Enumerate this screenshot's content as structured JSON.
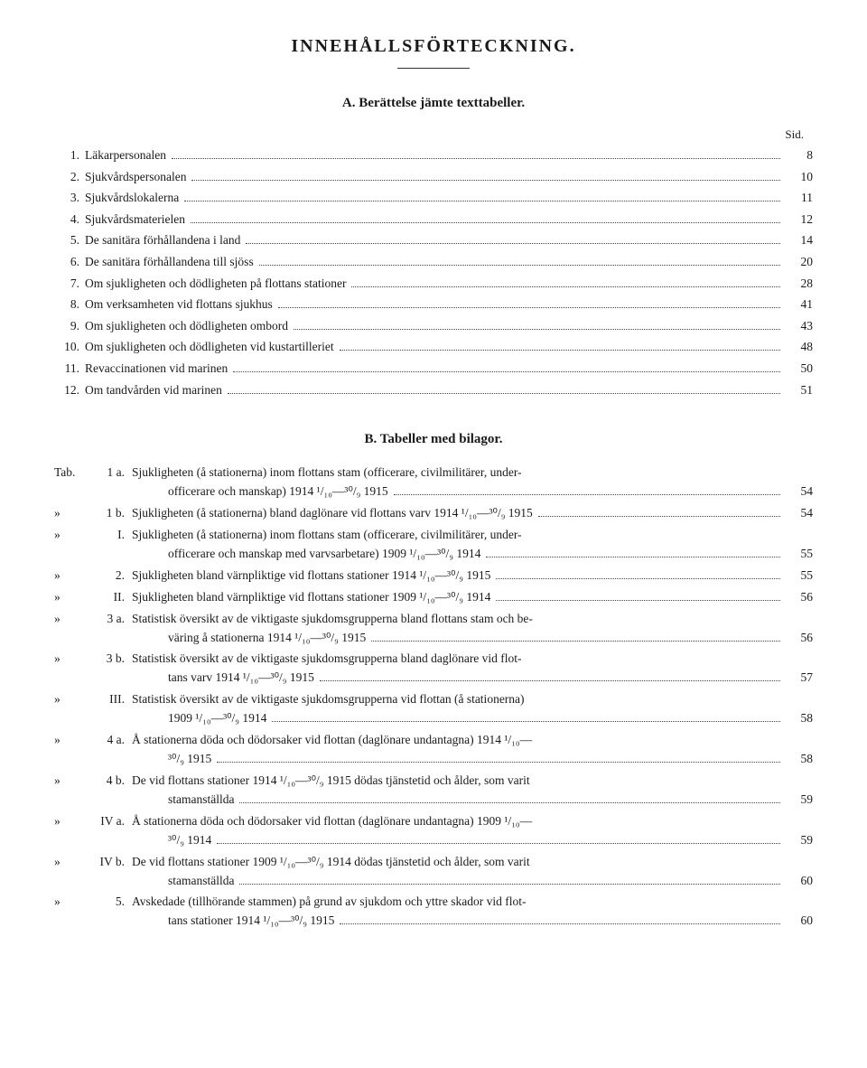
{
  "title": "INNEHÅLLSFÖRTECKNING.",
  "sectionA": {
    "heading": "A. Berättelse jämte texttabeller.",
    "sidLabel": "Sid.",
    "entries": [
      {
        "num": "1.",
        "label": "Läkarpersonalen",
        "page": "8"
      },
      {
        "num": "2.",
        "label": "Sjukvårdspersonalen",
        "page": "10"
      },
      {
        "num": "3.",
        "label": "Sjukvårdslokalerna",
        "page": "11"
      },
      {
        "num": "4.",
        "label": "Sjukvårdsmaterielen",
        "page": "12"
      },
      {
        "num": "5.",
        "label": "De sanitära förhållandena i land",
        "page": "14"
      },
      {
        "num": "6.",
        "label": "De sanitära förhållandena till sjöss",
        "page": "20"
      },
      {
        "num": "7.",
        "label": "Om sjukligheten och dödligheten på flottans stationer",
        "page": "28"
      },
      {
        "num": "8.",
        "label": "Om verksamheten vid flottans sjukhus",
        "page": "41"
      },
      {
        "num": "9.",
        "label": "Om sjukligheten och dödligheten ombord",
        "page": "43"
      },
      {
        "num": "10.",
        "label": "Om sjukligheten och dödligheten vid kustartilleriet",
        "page": "48"
      },
      {
        "num": "11.",
        "label": "Revaccinationen vid marinen",
        "page": "50"
      },
      {
        "num": "12.",
        "label": "Om tandvården vid marinen",
        "page": "51"
      }
    ]
  },
  "sectionB": {
    "heading": "B. Tabeller med bilagor.",
    "tabWord": "Tab.",
    "entries": [
      {
        "prefix": "Tab.",
        "sub": "1 a.",
        "lines": [
          "Sjukligheten (å stationerna) inom flottans stam (officerare, civilmilitärer, under-",
          "officerare och manskap) 1914 ¹/₁₀—³⁰/₉ 1915"
        ],
        "page": "54"
      },
      {
        "prefix": "»",
        "sub": "1 b.",
        "lines": [
          "Sjukligheten (å stationerna) bland daglönare vid flottans varv 1914 ¹/₁₀—³⁰/₉ 1915"
        ],
        "page": "54"
      },
      {
        "prefix": "»",
        "sub": "I.",
        "lines": [
          "Sjukligheten (å stationerna) inom flottans stam (officerare, civilmilitärer, under-",
          "officerare och manskap med varvsarbetare) 1909 ¹/₁₀—³⁰/₉ 1914"
        ],
        "page": "55"
      },
      {
        "prefix": "»",
        "sub": "2.",
        "lines": [
          "Sjukligheten bland värnpliktige vid flottans stationer 1914 ¹/₁₀—³⁰/₉ 1915"
        ],
        "page": "55"
      },
      {
        "prefix": "»",
        "sub": "II.",
        "lines": [
          "Sjukligheten bland värnpliktige vid flottans stationer 1909 ¹/₁₀—³⁰/₉ 1914"
        ],
        "page": "56"
      },
      {
        "prefix": "»",
        "sub": "3 a.",
        "lines": [
          "Statistisk översikt av de viktigaste sjukdomsgrupperna bland flottans stam och be-",
          "väring å stationerna 1914 ¹/₁₀—³⁰/₉ 1915"
        ],
        "page": "56"
      },
      {
        "prefix": "»",
        "sub": "3 b.",
        "lines": [
          "Statistisk översikt av de viktigaste sjukdomsgrupperna bland daglönare vid flot-",
          "tans varv 1914 ¹/₁₀—³⁰/₉ 1915"
        ],
        "page": "57"
      },
      {
        "prefix": "»",
        "sub": "III.",
        "lines": [
          "Statistisk översikt av de viktigaste sjukdomsgrupperna vid flottan (å stationerna)",
          "1909 ¹/₁₀—³⁰/₉ 1914"
        ],
        "page": "58"
      },
      {
        "prefix": "»",
        "sub": "4 a.",
        "lines": [
          "Å stationerna döda och dödorsaker vid flottan (daglönare undantagna) 1914 ¹/₁₀—",
          "³⁰/₉ 1915"
        ],
        "page": "58"
      },
      {
        "prefix": "»",
        "sub": "4 b.",
        "lines": [
          "De vid flottans stationer 1914 ¹/₁₀—³⁰/₉ 1915 dödas tjänstetid och ålder, som varit",
          "stamanställda"
        ],
        "page": "59"
      },
      {
        "prefix": "»",
        "sub": "IV a.",
        "lines": [
          "Å stationerna döda och dödorsaker vid flottan (daglönare undantagna) 1909 ¹/₁₀—",
          "³⁰/₉ 1914"
        ],
        "page": "59"
      },
      {
        "prefix": "»",
        "sub": "IV b.",
        "lines": [
          "De vid flottans stationer 1909 ¹/₁₀—³⁰/₉ 1914 dödas tjänstetid och ålder, som varit",
          "stamanställda"
        ],
        "page": "60"
      },
      {
        "prefix": "»",
        "sub": "5.",
        "lines": [
          "Avskedade (tillhörande stammen) på grund av sjukdom och yttre skador vid flot-",
          "tans stationer 1914 ¹/₁₀—³⁰/₉ 1915"
        ],
        "page": "60"
      }
    ]
  }
}
